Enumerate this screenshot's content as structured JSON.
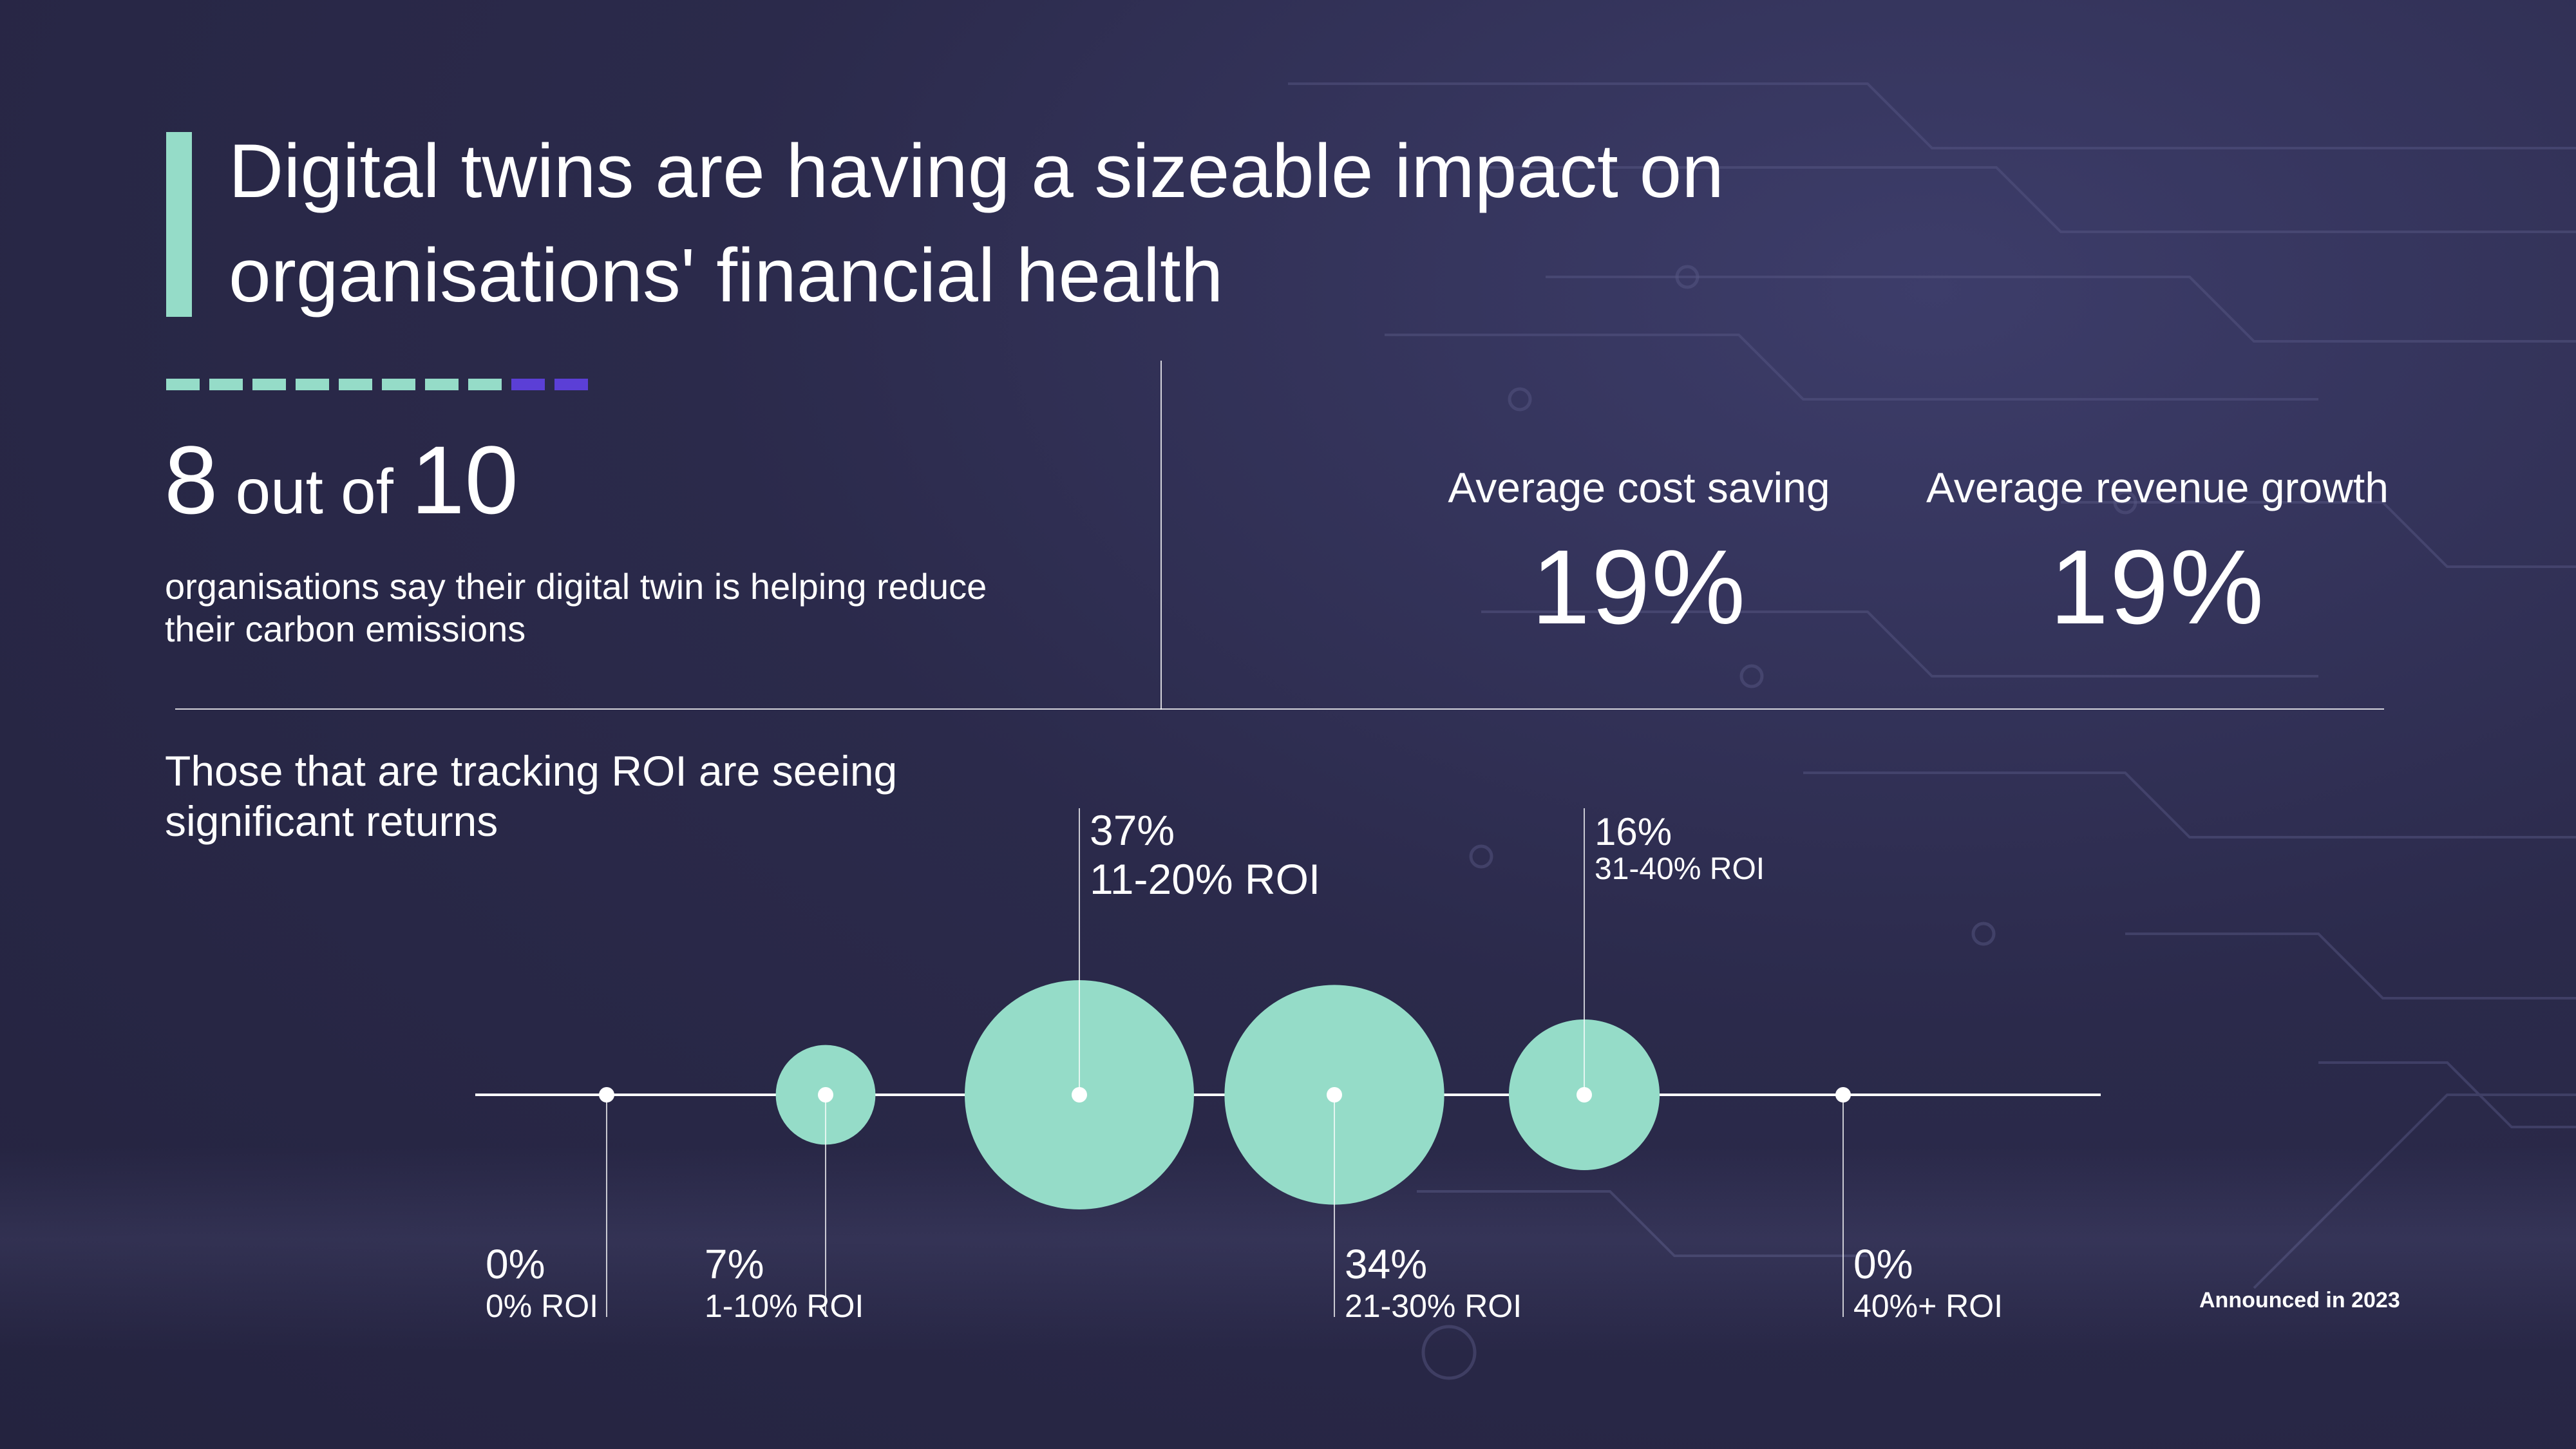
{
  "title": "Digital twins are having a sizeable impact on organisations' financial health",
  "stat": {
    "number1": "8",
    "middle": "out of",
    "number2": "10",
    "description": "organisations say their digital twin is helping reduce their carbon emissions"
  },
  "metrics": [
    {
      "label": "Average cost saving",
      "value": "19%"
    },
    {
      "label": "Average revenue growth",
      "value": "19%"
    }
  ],
  "roi_heading": "Those that are tracking ROI are seeing significant returns",
  "footnote": "Announced in 2023",
  "colors": {
    "accent": "#95dcc8",
    "accent2": "#5b3fd6",
    "background": "#2b2a4b"
  },
  "chart_data": {
    "type": "scatter",
    "title": "",
    "categories": [
      "0% ROI",
      "1-10% ROI",
      "11-20% ROI",
      "21-30% ROI",
      "31-40% ROI",
      "40%+ ROI"
    ],
    "values": [
      0,
      7,
      37,
      34,
      16,
      0
    ],
    "value_labels": [
      "0%",
      "7%",
      "37%",
      "34%",
      "16%",
      "0%"
    ],
    "label_positions": [
      "below",
      "below",
      "above",
      "below",
      "above",
      "below"
    ],
    "series": [
      {
        "values": [
          0,
          7,
          37,
          34,
          16,
          0
        ]
      }
    ]
  }
}
